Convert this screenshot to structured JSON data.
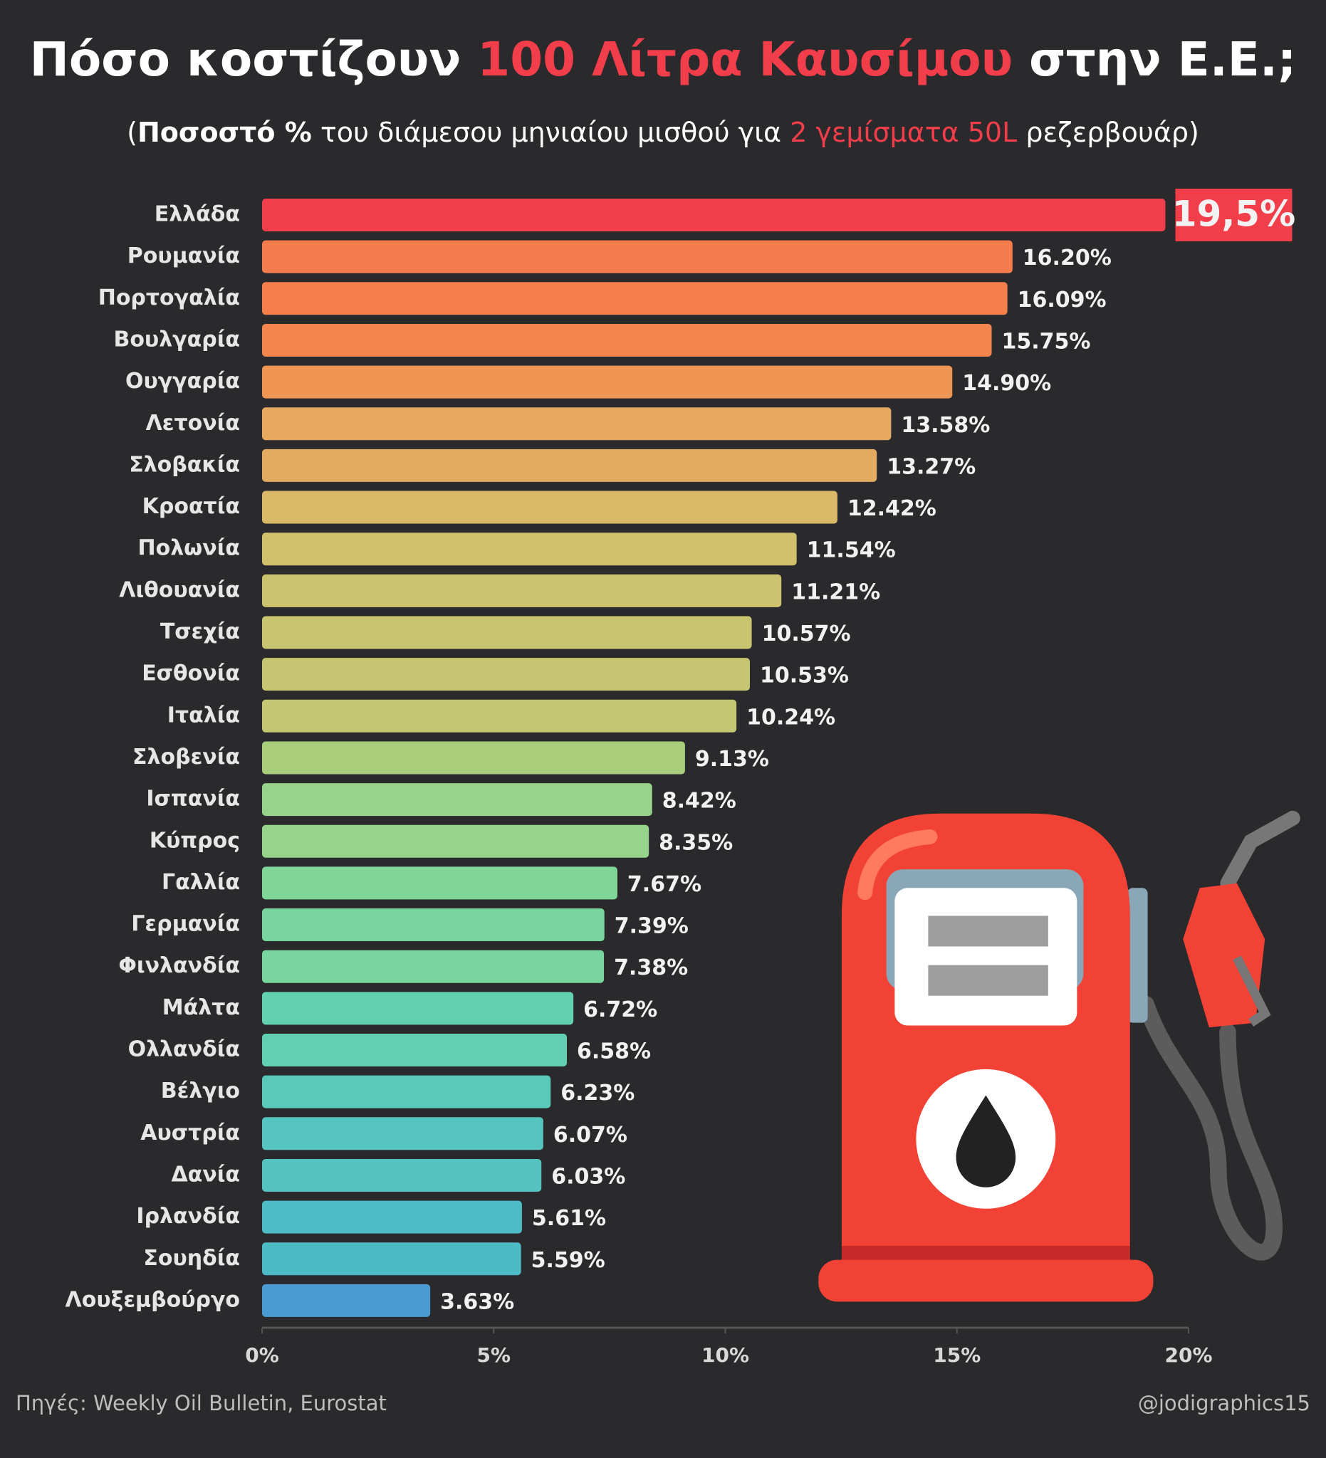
{
  "chart_data": {
    "type": "bar",
    "orientation": "horizontal",
    "title_parts": [
      "Πόσο κοστίζουν ",
      "100 Λίτρα Καυσίμου",
      " στην Ε.Ε.;"
    ],
    "subtitle_parts": [
      "(",
      "Ποσοστό %",
      " του διάμεσου μηνιαίου μισθού για ",
      "2 γεμίσματα 50L",
      " ρεζερβουάρ)"
    ],
    "categories": [
      "Ελλάδα",
      "Ρουμανία",
      "Πορτογαλία",
      "Βουλγαρία",
      "Ουγγαρία",
      "Λετονία",
      "Σλοβακία",
      "Κροατία",
      "Πολωνία",
      "Λιθουανία",
      "Τσεχία",
      "Εσθονία",
      "Ιταλία",
      "Σλοβενία",
      "Ισπανία",
      "Κύπρος",
      "Γαλλία",
      "Γερμανία",
      "Φινλανδία",
      "Μάλτα",
      "Ολλανδία",
      "Βέλγιο",
      "Αυστρία",
      "Δανία",
      "Ιρλανδία",
      "Σουηδία",
      "Λουξεμβούργο"
    ],
    "values": [
      19.5,
      16.2,
      16.09,
      15.75,
      14.9,
      13.58,
      13.27,
      12.42,
      11.54,
      11.21,
      10.57,
      10.53,
      10.24,
      9.13,
      8.42,
      8.35,
      7.67,
      7.39,
      7.38,
      6.72,
      6.58,
      6.23,
      6.07,
      6.03,
      5.61,
      5.59,
      3.63
    ],
    "value_labels": [
      "19,5%",
      "16.20%",
      "16.09%",
      "15.75%",
      "14.90%",
      "13.58%",
      "13.27%",
      "12.42%",
      "11.54%",
      "11.21%",
      "10.57%",
      "10.53%",
      "10.24%",
      "9.13%",
      "8.42%",
      "8.35%",
      "7.67%",
      "7.39%",
      "7.38%",
      "6.72%",
      "6.58%",
      "6.23%",
      "6.07%",
      "6.03%",
      "5.61%",
      "5.59%",
      "3.63%"
    ],
    "colors": [
      "#f23d4b",
      "#f57c4c",
      "#f47e4c",
      "#f4854e",
      "#ef9655",
      "#e7a860",
      "#e3ab62",
      "#d9b968",
      "#d0c06c",
      "#cdc26e",
      "#c8c470",
      "#c6c571",
      "#c3c773",
      "#a8ce7c",
      "#97d388",
      "#95d48a",
      "#80d598",
      "#78d59d",
      "#78d59d",
      "#63d1ae",
      "#60cfb2",
      "#5ac9bb",
      "#56c5bf",
      "#55c4c0",
      "#4dbcc6",
      "#4dbbc6",
      "#4a9bd4"
    ],
    "xlim": [
      0,
      20
    ],
    "xticks": [
      {
        "value": 0,
        "label": "0%"
      },
      {
        "value": 5,
        "label": "5%"
      },
      {
        "value": 10,
        "label": "10%"
      },
      {
        "value": 15,
        "label": "15%"
      },
      {
        "value": 20,
        "label": "20%"
      }
    ],
    "source": "Πηγές: Weekly Oil Bulletin, Eurostat",
    "credit": "@jodigraphics15"
  }
}
